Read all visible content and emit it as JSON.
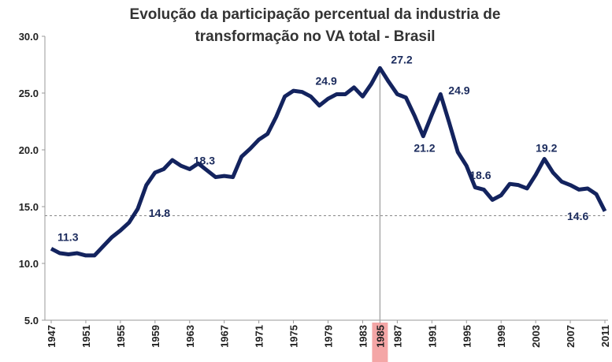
{
  "chart_data": {
    "type": "line",
    "title": [
      "Evolução da participação percentual da industria de",
      "transformação no VA total - Brasil"
    ],
    "x": [
      1947,
      1948,
      1949,
      1950,
      1951,
      1952,
      1953,
      1954,
      1955,
      1956,
      1957,
      1958,
      1959,
      1960,
      1961,
      1962,
      1963,
      1964,
      1965,
      1966,
      1967,
      1968,
      1969,
      1970,
      1971,
      1972,
      1973,
      1974,
      1975,
      1976,
      1977,
      1978,
      1979,
      1980,
      1981,
      1982,
      1983,
      1984,
      1985,
      1986,
      1987,
      1988,
      1989,
      1990,
      1991,
      1992,
      1993,
      1994,
      1995,
      1996,
      1997,
      1998,
      1999,
      2000,
      2001,
      2002,
      2003,
      2004,
      2005,
      2006,
      2007,
      2008,
      2009,
      2010,
      2011
    ],
    "series": [
      {
        "color": "#13235e",
        "values": [
          11.3,
          10.9,
          10.8,
          10.9,
          10.7,
          10.7,
          11.5,
          12.3,
          12.9,
          13.6,
          14.8,
          16.9,
          18.0,
          18.3,
          19.1,
          18.6,
          18.3,
          18.8,
          18.2,
          17.6,
          17.7,
          17.6,
          19.4,
          20.1,
          20.9,
          21.4,
          22.9,
          24.7,
          25.2,
          25.1,
          24.7,
          23.9,
          24.5,
          24.9,
          24.9,
          25.5,
          24.7,
          25.8,
          27.2,
          26.0,
          24.9,
          24.6,
          23.0,
          21.2,
          23.1,
          24.9,
          22.4,
          19.8,
          18.6,
          16.7,
          16.5,
          15.6,
          16.0,
          17.0,
          16.9,
          16.6,
          17.8,
          19.2,
          18.0,
          17.2,
          16.9,
          16.5,
          16.6,
          16.1,
          14.6
        ],
        "value_labels": [
          "11.3",
          null,
          null,
          null,
          null,
          null,
          null,
          null,
          null,
          null,
          "14.8",
          null,
          null,
          null,
          null,
          null,
          "18.3",
          null,
          null,
          null,
          null,
          null,
          null,
          null,
          null,
          null,
          null,
          null,
          null,
          null,
          null,
          null,
          null,
          "24.9",
          null,
          null,
          null,
          null,
          "27.2",
          null,
          null,
          null,
          null,
          "21.2",
          null,
          "24.9",
          null,
          null,
          "18.6",
          null,
          null,
          null,
          null,
          null,
          null,
          null,
          null,
          "19.2",
          null,
          null,
          null,
          null,
          null,
          null,
          "14.6"
        ]
      }
    ],
    "xlim": [
      1947,
      2011
    ],
    "xticks": [
      1947,
      1951,
      1955,
      1959,
      1963,
      1967,
      1971,
      1975,
      1979,
      1983,
      1985,
      1987,
      1991,
      1995,
      1999,
      2003,
      2007,
      2011
    ],
    "ylim": [
      5,
      30
    ],
    "yticks": [
      {
        "value": 5,
        "label": "5.0"
      },
      {
        "value": 10,
        "label": "10.0"
      },
      {
        "value": 15,
        "label": "15.0"
      },
      {
        "value": 20,
        "label": "20.0"
      },
      {
        "value": 25,
        "label": "25.0"
      },
      {
        "value": 30,
        "label": "30.0"
      }
    ],
    "reference_lines": {
      "y": 14.2,
      "x": 1985
    }
  }
}
